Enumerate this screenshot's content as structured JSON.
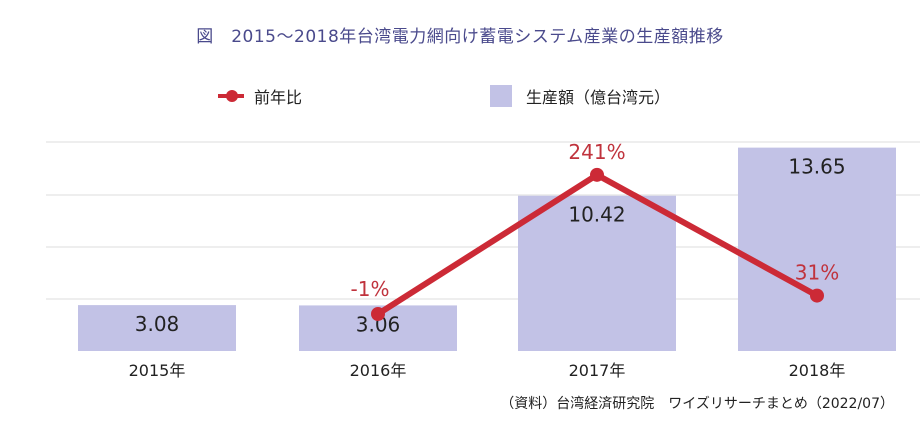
{
  "chart_data": {
    "type": "bar",
    "title": "図　2015〜2018年台湾電力網向け蓄電システム産業の生産額推移",
    "categories": [
      "2015年",
      "2016年",
      "2017年",
      "2018年"
    ],
    "series": [
      {
        "name": "生産額（億台湾元）",
        "type": "bar",
        "color": "#c2c2e6",
        "values": [
          3.08,
          3.06,
          10.42,
          13.65
        ],
        "labels": [
          "3.08",
          "3.06",
          "10.42",
          "13.65"
        ]
      },
      {
        "name": "前年比",
        "type": "line",
        "color": "#cc2a36",
        "points": [
          {
            "category": "2016年",
            "value": -1,
            "label": "-1%"
          },
          {
            "category": "2017年",
            "value": 241,
            "label": "241%"
          },
          {
            "category": "2018年",
            "value": 31,
            "label": "31%"
          }
        ]
      }
    ],
    "legend_position": "top",
    "grid": true,
    "source": "（資料）台湾経済研究院　ワイズリサーチまとめ（2022/07）"
  }
}
